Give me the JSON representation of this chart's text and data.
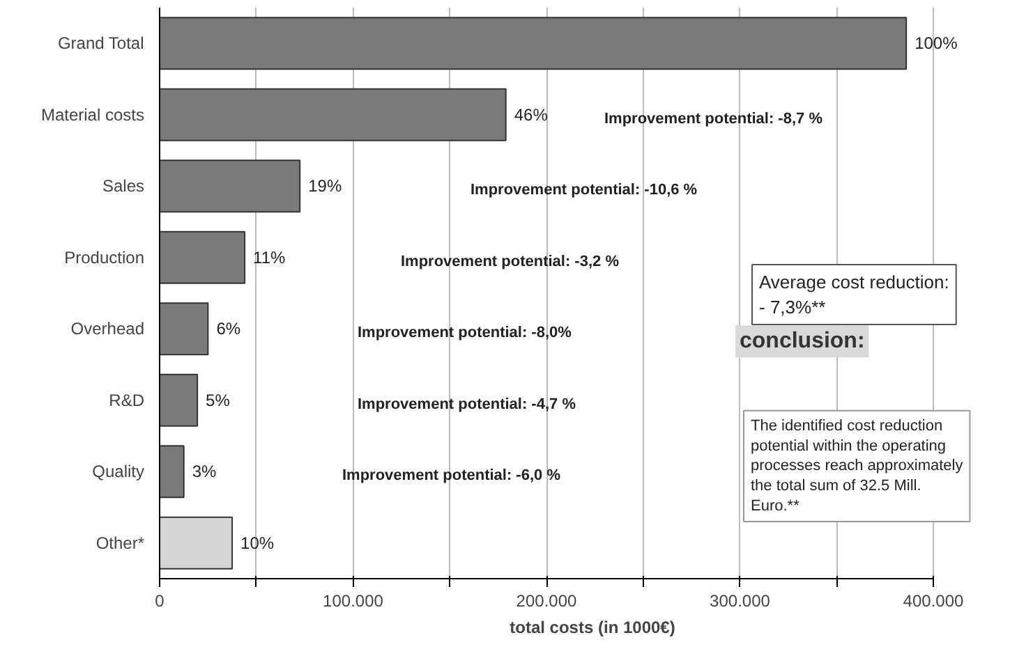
{
  "chart_data": {
    "type": "bar",
    "orientation": "horizontal",
    "categories": [
      "Grand Total",
      "Material costs",
      "Sales",
      "Production",
      "Overhead",
      "R&D",
      "Quality",
      "Other*"
    ],
    "values": [
      386000,
      179000,
      72500,
      44000,
      25000,
      19500,
      12500,
      37500
    ],
    "colors": [
      "#7a7a7a",
      "#7a7a7a",
      "#7a7a7a",
      "#7a7a7a",
      "#7a7a7a",
      "#7a7a7a",
      "#7a7a7a",
      "#d4d4d4"
    ],
    "xlabel": "total costs (in 1000€)",
    "xlim": [
      0,
      400000
    ],
    "xticks": [
      0,
      {
        "value": 50000,
        "label": null
      },
      {
        "value": 100000,
        "label": "100.000"
      },
      {
        "value": 150000,
        "label": null
      },
      {
        "value": 200000,
        "label": "200.000"
      },
      {
        "value": 250000,
        "label": null
      },
      {
        "value": 300000,
        "label": "300.000"
      },
      {
        "value": 350000,
        "label": null
      },
      {
        "value": 400000,
        "label": "400.000"
      }
    ],
    "grid": "x",
    "annotations": [
      {
        "text": "100%",
        "x": 386000,
        "y": "Grand Total"
      },
      {
        "text": "46%",
        "x": 179000,
        "y": "Material costs"
      },
      {
        "text": "19%",
        "x": 72500,
        "y": "Sales"
      },
      {
        "text": "11%",
        "x": 44000,
        "y": "Production"
      },
      {
        "text": "6%",
        "x": 25000,
        "y": "Overhead"
      },
      {
        "text": "5%",
        "x": 19500,
        "y": "R&D"
      },
      {
        "text": "3%",
        "x": 12500,
        "y": "Quality"
      },
      {
        "text": "10%",
        "x": 37500,
        "y": "Other*"
      },
      "Improvement potential: -8,7 %",
      "Improvement potential: -10,6 %",
      "Improvement potential: -3,2 %",
      "Improvement potential: -8,0%",
      "Improvement potential: -4,7 %",
      "Improvement potential: -6,0 %",
      "Average cost reduction:\n- 7,3%**",
      "conclusion:",
      "The identified cost reduction potential within the operating processes reach approximately the total sum of 32.5 Mill. Euro.**"
    ]
  }
}
